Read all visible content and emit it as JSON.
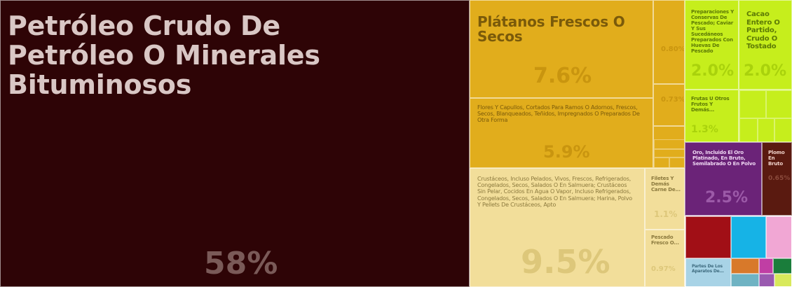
{
  "chart_data": {
    "type": "treemap",
    "title": "",
    "tiles": [
      {
        "label": "Petróleo Crudo De Petróleo O Minerales Bituminosos",
        "value": 58,
        "value_label": "58%",
        "color": "#2e0406",
        "text_color": "#d9c7c5",
        "pct_color": "#7a5a58"
      },
      {
        "label": "Plátanos Frescos O Secos",
        "value": 7.6,
        "value_label": "7.6%",
        "color": "#e1ad1c",
        "text_color": "#7a5a0a",
        "pct_color": "#c9950f"
      },
      {
        "label": "",
        "value": 0.8,
        "value_label": "0.80%",
        "color": "#e1ad1c",
        "text_color": "#7a5a0a",
        "pct_color": "#c9950f"
      },
      {
        "label": "",
        "value": 0.73,
        "value_label": "0.73%",
        "color": "#e1ad1c",
        "text_color": "#7a5a0a",
        "pct_color": "#c9950f"
      },
      {
        "label": "Flores Y Capullos, Cortados Para Ramos O Adornos, Frescos, Secos, Blanqueados, Teñidos, Impregnados O Preparados De Otra Forma",
        "value": 5.9,
        "value_label": "5.9%",
        "color": "#e1ad1c",
        "text_color": "#7a5a0a",
        "pct_color": "#c9950f"
      },
      {
        "label": "Crustáceos, Incluso Pelados, Vivos, Frescos, Refrigerados, Congelados, Secos, Salados O En Salmuera; Crustáceos Sin Pelar, Cocidos En Agua O Vapor, Incluso Refrigerados, Congelados, Secos, Salados O En Salmuera; Harina, Polvo Y Pellets De Crustáceos, Apto",
        "value": 9.5,
        "value_label": "9.5%",
        "color": "#f2de9a",
        "text_color": "#8c7a3e",
        "pct_color": "#ddc77a"
      },
      {
        "label": "Filetes Y Demás Carne De...",
        "value": 1.1,
        "value_label": "1.1%",
        "color": "#f2de9a",
        "text_color": "#8c7a3e",
        "pct_color": "#ddc77a"
      },
      {
        "label": "Pescado Fresco O...",
        "value": 0.97,
        "value_label": "0.97%",
        "color": "#f2de9a",
        "text_color": "#8c7a3e",
        "pct_color": "#ddc77a"
      },
      {
        "label": "Preparaciones Y Conservas De Pescado; Caviar Y Sus Sucedáneos Preparados Con Huevas De Pescado",
        "value": 2.0,
        "value_label": "2.0%",
        "color": "#c6ee1c",
        "text_color": "#5d7a05",
        "pct_color": "#a9d20c"
      },
      {
        "label": "Cacao Entero O Partido, Crudo O Tostado",
        "value": 2.0,
        "value_label": "2.0%",
        "color": "#c6ee1c",
        "text_color": "#5d7a05",
        "pct_color": "#a9d20c"
      },
      {
        "label": "Frutas U Otros Frutos Y Demás...",
        "value": 1.3,
        "value_label": "1.3%",
        "color": "#c6ee1c",
        "text_color": "#5d7a05",
        "pct_color": "#a9d20c"
      },
      {
        "label": "Oro, Incluido El Oro Platinado, En Bruto, Semilabrado O En Polvo",
        "value": 2.5,
        "value_label": "2.5%",
        "color": "#6b2378",
        "text_color": "#f0d8f4",
        "pct_color": "#9c5aa8"
      },
      {
        "label": "Plomo En Bruto",
        "value": 0.65,
        "value_label": "0.65%",
        "color": "#5a1a10",
        "text_color": "#f0d2ca",
        "pct_color": "#8a4a3c"
      },
      {
        "label": "Partes De Los Aparatos De...",
        "value": null,
        "value_label": "",
        "color": "#a8d3e6",
        "text_color": "#3f6c80",
        "pct_color": "#7fb0c6"
      }
    ]
  }
}
